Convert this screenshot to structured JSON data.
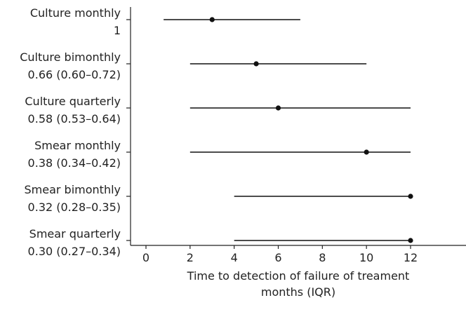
{
  "chart_data": {
    "type": "scatter",
    "subtype": "forest-plot-horizontal",
    "xlabel_lines": [
      "Time to detection of failure of treament",
      "months (IQR)"
    ],
    "ylabel": "",
    "xlim": [
      -1,
      15
    ],
    "xticks": [
      0,
      2,
      4,
      6,
      8,
      10,
      12
    ],
    "grid": false,
    "legend": "none",
    "rows": [
      {
        "name": "Culture monthly",
        "ratio": "1",
        "median": 3,
        "low": 0.8,
        "high": 7
      },
      {
        "name": "Culture bimonthly",
        "ratio": "0.66 (0.60–0.72)",
        "median": 5,
        "low": 2,
        "high": 10
      },
      {
        "name": "Culture quarterly",
        "ratio": "0.58 (0.53–0.64)",
        "median": 6,
        "low": 2,
        "high": 12
      },
      {
        "name": "Smear monthly",
        "ratio": "0.38 (0.34–0.42)",
        "median": 10,
        "low": 2,
        "high": 12
      },
      {
        "name": "Smear bimonthly",
        "ratio": "0.32 (0.28–0.35)",
        "median": 12,
        "low": 4,
        "high": 12
      },
      {
        "name": "Smear quarterly",
        "ratio": "0.30 (0.27–0.34)",
        "median": 12,
        "low": 4,
        "high": 12
      }
    ],
    "colors": {
      "line": "#111111",
      "point": "#111111",
      "text": "#222222"
    }
  }
}
